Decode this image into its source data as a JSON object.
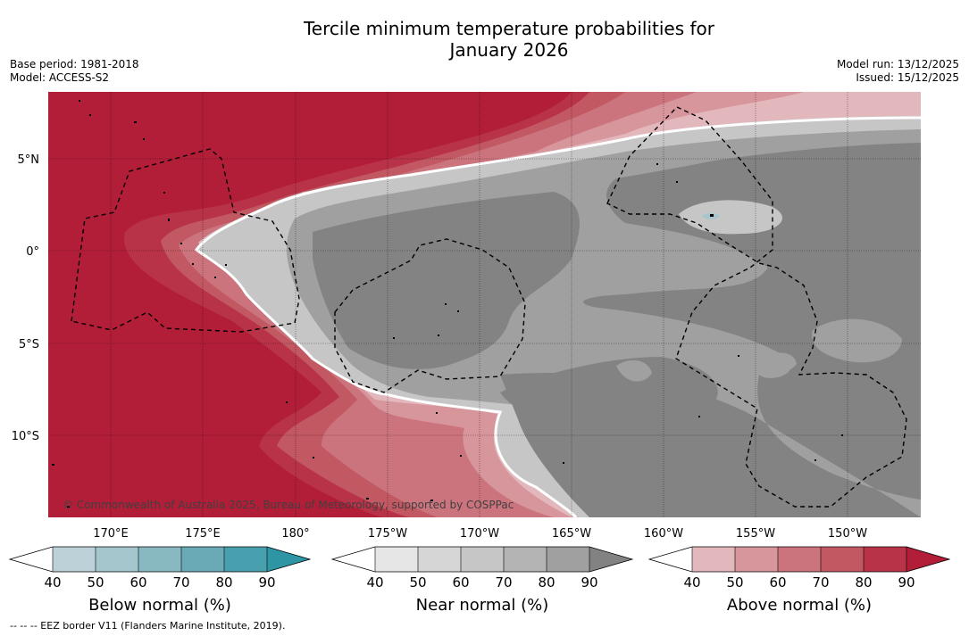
{
  "title_line1": "Tercile minimum temperature probabilities for",
  "title_line2": "January 2026",
  "base_period": "Base period: 1981-2018",
  "model": "Model: ACCESS-S2",
  "model_run": "Model run: 13/12/2025",
  "issued": "Issued: 15/12/2025",
  "copyright": "© Commonwealth of Australia 2025, Bureau of Meteorology, supported by COSPPac",
  "eez_note": "--  --  -- EEZ border V11 (Flanders Marine Institute, 2019).",
  "lat_labels": [
    "5°N",
    "0°",
    "5°S",
    "10°S"
  ],
  "lon_labels": [
    "170°E",
    "175°E",
    "180°",
    "175°W",
    "170°W",
    "165°W",
    "160°W",
    "155°W",
    "150°W"
  ],
  "colorbars": [
    {
      "name": "below-normal",
      "title": "Below normal (%)",
      "ticks": [
        "40",
        "50",
        "60",
        "70",
        "80",
        "90"
      ],
      "colors": [
        "#ffffff",
        "#bdd2d8",
        "#a5c6cc",
        "#88b8c0",
        "#6aa9b6",
        "#48a0ae",
        "#2e95a5"
      ]
    },
    {
      "name": "near-normal",
      "title": "Near normal (%)",
      "ticks": [
        "40",
        "50",
        "60",
        "70",
        "80",
        "90"
      ],
      "colors": [
        "#ffffff",
        "#e6e6e6",
        "#d6d6d6",
        "#c6c6c6",
        "#b4b4b4",
        "#a0a0a0",
        "#828282"
      ]
    },
    {
      "name": "above-normal",
      "title": "Above normal (%)",
      "ticks": [
        "40",
        "50",
        "60",
        "70",
        "80",
        "90"
      ],
      "colors": [
        "#ffffff",
        "#e3b8bd",
        "#d7959c",
        "#cb747e",
        "#c15862",
        "#b83347",
        "#b21d38"
      ]
    }
  ],
  "map_colors": {
    "above_90": "#b21d38",
    "above_80": "#b83347",
    "above_70": "#c15862",
    "above_60": "#cb747e",
    "above_50": "#d7959c",
    "above_40": "#e3b8bd",
    "near_40": "#c6c6c6",
    "near_60": "#a0a0a0",
    "near_90": "#838383",
    "below_60": "#a5c6cc"
  }
}
